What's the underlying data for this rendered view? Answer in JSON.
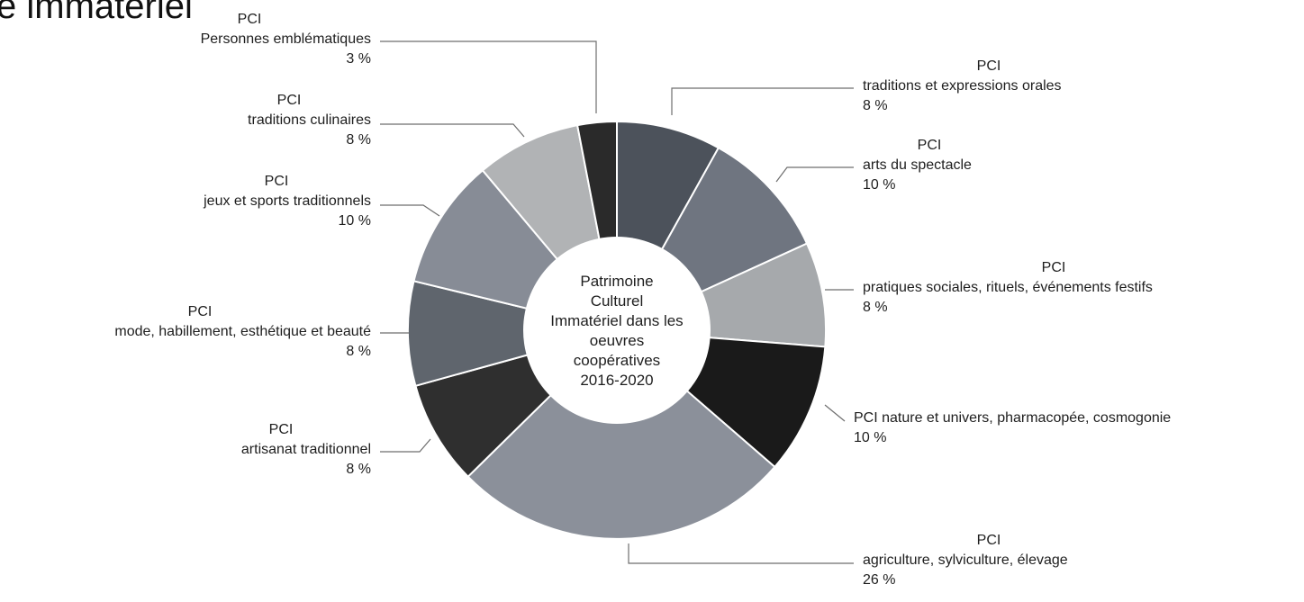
{
  "page_heading_fragment": "e immatériel",
  "chart_data": {
    "type": "pie",
    "variant": "donut",
    "center_label": [
      "Patrimoine",
      "Culturel",
      "Immatériel dans les",
      "oeuvres",
      "coopératives",
      "2016-2020"
    ],
    "slices": [
      {
        "label_lines": [
          "PCI",
          "traditions et expressions orales"
        ],
        "value_label": "8 %",
        "value": 8,
        "color": "#4c525b"
      },
      {
        "label_lines": [
          "PCI",
          "arts du spectacle"
        ],
        "value_label": "10 %",
        "value": 10,
        "color": "#6f7580"
      },
      {
        "label_lines": [
          "PCI",
          "pratiques sociales, rituels, événements festifs"
        ],
        "value_label": "8 %",
        "value": 8,
        "color": "#a6a9ac"
      },
      {
        "label_lines": [
          "PCI nature et univers, pharmacopée, cosmogonie"
        ],
        "value_label": "10 %",
        "value": 10,
        "color": "#1a1a1a"
      },
      {
        "label_lines": [
          "PCI",
          "agriculture, sylviculture, élevage"
        ],
        "value_label": "26 %",
        "value": 26,
        "color": "#8b909a"
      },
      {
        "label_lines": [
          "PCI",
          "artisanat traditionnel"
        ],
        "value_label": "8 %",
        "value": 8,
        "color": "#2f2f2f"
      },
      {
        "label_lines": [
          "PCI",
          "mode, habillement, esthétique et beauté"
        ],
        "value_label": "8 %",
        "value": 8,
        "color": "#5f656d"
      },
      {
        "label_lines": [
          "PCI",
          "jeux et sports traditionnels"
        ],
        "value_label": "10 %",
        "value": 10,
        "color": "#878c96"
      },
      {
        "label_lines": [
          "PCI",
          "traditions culinaires"
        ],
        "value_label": "8 %",
        "value": 8,
        "color": "#b1b3b5"
      },
      {
        "label_lines": [
          "PCI",
          "Personnes emblématiques"
        ],
        "value_label": "3 %",
        "value": 3,
        "color": "#2a2a2a"
      }
    ]
  }
}
